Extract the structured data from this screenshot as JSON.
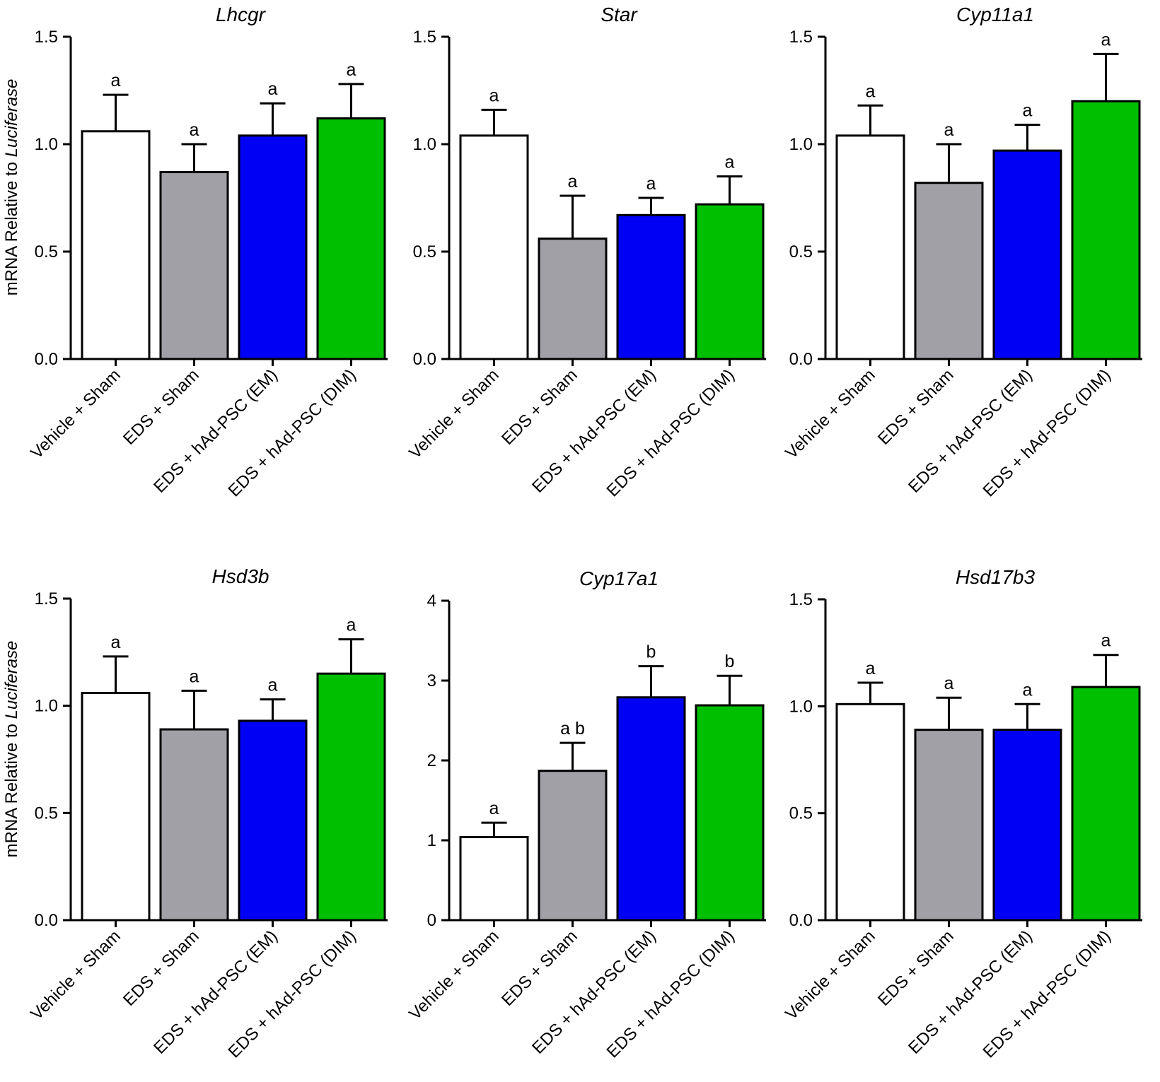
{
  "figure": {
    "ylabel_prefix": "mRNA Relative to ",
    "ylabel_italic": "Luciferase"
  },
  "colors": {
    "Vehicle + Sham": "#ffffff",
    "EDS + Sham": "#a0a0a6",
    "EDS + hAd-PSC (EM)": "#0000f5",
    "EDS + hAd-PSC (DIM)": "#00bf00",
    "axis": "#000000"
  },
  "chart_data": [
    {
      "type": "bar",
      "title": "Lhcgr",
      "ylabel": "mRNA Relative to Luciferase",
      "categories": [
        "Vehicle + Sham",
        "EDS + Sham",
        "EDS + hAd-PSC (EM)",
        "EDS + hAd-PSC (DIM)"
      ],
      "values": [
        1.06,
        0.87,
        1.04,
        1.12
      ],
      "errors": [
        0.17,
        0.13,
        0.15,
        0.16
      ],
      "significance": [
        "a",
        "a",
        "a",
        "a"
      ],
      "ylim": [
        0,
        1.5
      ],
      "yticks": [
        0.0,
        0.5,
        1.0,
        1.5
      ],
      "ytick_labels": [
        "0.0",
        "0.5",
        "1.0",
        "1.5"
      ]
    },
    {
      "type": "bar",
      "title": "Star",
      "ylabel": "",
      "categories": [
        "Vehicle + Sham",
        "EDS + Sham",
        "EDS + hAd-PSC (EM)",
        "EDS + hAd-PSC (DIM)"
      ],
      "values": [
        1.04,
        0.56,
        0.67,
        0.72
      ],
      "errors": [
        0.12,
        0.2,
        0.08,
        0.13
      ],
      "significance": [
        "a",
        "a",
        "a",
        "a"
      ],
      "ylim": [
        0,
        1.5
      ],
      "yticks": [
        0.0,
        0.5,
        1.0,
        1.5
      ],
      "ytick_labels": [
        "0.0",
        "0.5",
        "1.0",
        "1.5"
      ]
    },
    {
      "type": "bar",
      "title": "Cyp11a1",
      "ylabel": "",
      "categories": [
        "Vehicle + Sham",
        "EDS + Sham",
        "EDS + hAd-PSC (EM)",
        "EDS + hAd-PSC (DIM)"
      ],
      "values": [
        1.04,
        0.82,
        0.97,
        1.2
      ],
      "errors": [
        0.14,
        0.18,
        0.12,
        0.22
      ],
      "significance": [
        "a",
        "a",
        "a",
        "a"
      ],
      "ylim": [
        0,
        1.5
      ],
      "yticks": [
        0.0,
        0.5,
        1.0,
        1.5
      ],
      "ytick_labels": [
        "0.0",
        "0.5",
        "1.0",
        "1.5"
      ]
    },
    {
      "type": "bar",
      "title": "Hsd3b",
      "ylabel": "mRNA Relative to Luciferase",
      "categories": [
        "Vehicle + Sham",
        "EDS + Sham",
        "EDS + hAd-PSC (EM)",
        "EDS + hAd-PSC (DIM)"
      ],
      "values": [
        1.06,
        0.89,
        0.93,
        1.15
      ],
      "errors": [
        0.17,
        0.18,
        0.1,
        0.16
      ],
      "significance": [
        "a",
        "a",
        "a",
        "a"
      ],
      "ylim": [
        0,
        1.5
      ],
      "yticks": [
        0.0,
        0.5,
        1.0,
        1.5
      ],
      "ytick_labels": [
        "0.0",
        "0.5",
        "1.0",
        "1.5"
      ]
    },
    {
      "type": "bar",
      "title": "Cyp17a1",
      "ylabel": "",
      "categories": [
        "Vehicle + Sham",
        "EDS + Sham",
        "EDS + hAd-PSC (EM)",
        "EDS + hAd-PSC (DIM)"
      ],
      "values": [
        1.04,
        1.87,
        2.79,
        2.69
      ],
      "errors": [
        0.18,
        0.35,
        0.39,
        0.37
      ],
      "significance": [
        "a",
        "a b",
        "b",
        "b"
      ],
      "ylim": [
        0,
        4
      ],
      "yticks": [
        0,
        1,
        2,
        3,
        4
      ],
      "ytick_labels": [
        "0",
        "1",
        "2",
        "3",
        "4"
      ]
    },
    {
      "type": "bar",
      "title": "Hsd17b3",
      "ylabel": "",
      "categories": [
        "Vehicle + Sham",
        "EDS + Sham",
        "EDS + hAd-PSC (EM)",
        "EDS + hAd-PSC (DIM)"
      ],
      "values": [
        1.01,
        0.89,
        0.89,
        1.09
      ],
      "errors": [
        0.1,
        0.15,
        0.12,
        0.15
      ],
      "significance": [
        "a",
        "a",
        "a",
        "a"
      ],
      "ylim": [
        0,
        1.5
      ],
      "yticks": [
        0.0,
        0.5,
        1.0,
        1.5
      ],
      "ytick_labels": [
        "0.0",
        "0.5",
        "1.0",
        "1.5"
      ]
    }
  ]
}
